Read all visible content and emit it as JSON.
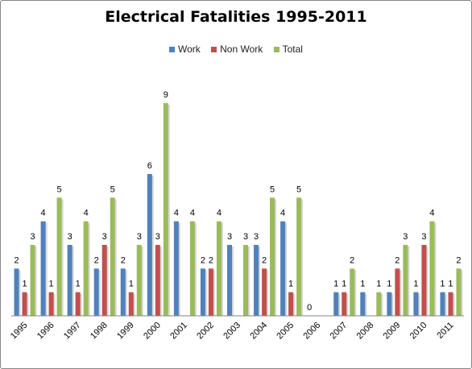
{
  "chart_data": {
    "type": "bar",
    "title": "Electrical Fatalities 1995-2011",
    "categories": [
      "1995",
      "1996",
      "1997",
      "1998",
      "1999",
      "2000",
      "2001",
      "2002",
      "2003",
      "2004",
      "2005",
      "2006",
      "2007",
      "2008",
      "2009",
      "2010",
      "2011"
    ],
    "series": [
      {
        "name": "Work",
        "color": "#4F81BD",
        "values": [
          2,
          4,
          3,
          2,
          2,
          6,
          4,
          2,
          3,
          3,
          4,
          0,
          1,
          1,
          1,
          1,
          1
        ]
      },
      {
        "name": "Non Work",
        "color": "#C0504D",
        "values": [
          1,
          1,
          1,
          3,
          1,
          3,
          null,
          2,
          null,
          2,
          1,
          null,
          1,
          null,
          2,
          3,
          1
        ]
      },
      {
        "name": "Total",
        "color": "#9BBB59",
        "values": [
          3,
          5,
          4,
          5,
          3,
          9,
          4,
          4,
          3,
          5,
          5,
          null,
          2,
          1,
          3,
          4,
          2
        ]
      }
    ],
    "ylim": [
      0,
      9
    ],
    "legend_position": "top",
    "grid": false
  }
}
